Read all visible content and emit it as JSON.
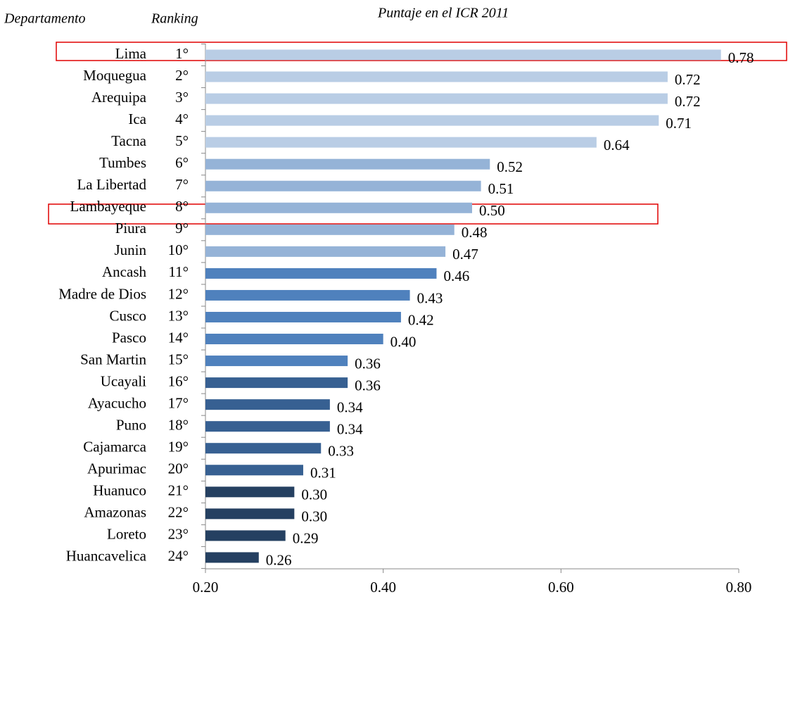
{
  "chart_data": {
    "type": "hbar",
    "title": "Puntaje en el ICR 2011",
    "category_header": "Departamento",
    "rank_header": "Ranking",
    "categories": [
      "Lima",
      "Moquegua",
      "Arequipa",
      "Ica",
      "Tacna",
      "Tumbes",
      "La Libertad",
      "Lambayeque",
      "Piura",
      "Junin",
      "Ancash",
      "Madre de Dios",
      "Cusco",
      "Pasco",
      "San Martin",
      "Ucayali",
      "Ayacucho",
      "Puno",
      "Cajamarca",
      "Apurimac",
      "Huanuco",
      "Amazonas",
      "Loreto",
      "Huancavelica"
    ],
    "ranks": [
      "1°",
      "2°",
      "3°",
      "4°",
      "5°",
      "6°",
      "7°",
      "8°",
      "9°",
      "10°",
      "11°",
      "12°",
      "13°",
      "14°",
      "15°",
      "16°",
      "17°",
      "18°",
      "19°",
      "20°",
      "21°",
      "22°",
      "23°",
      "24°"
    ],
    "values": [
      0.78,
      0.72,
      0.72,
      0.71,
      0.64,
      0.52,
      0.51,
      0.5,
      0.48,
      0.47,
      0.46,
      0.43,
      0.42,
      0.4,
      0.36,
      0.36,
      0.34,
      0.34,
      0.33,
      0.31,
      0.3,
      0.3,
      0.29,
      0.26
    ],
    "value_labels": [
      "0.78",
      "0.72",
      "0.72",
      "0.71",
      "0.64",
      "0.52",
      "0.51",
      "0.50",
      "0.48",
      "0.47",
      "0.46",
      "0.43",
      "0.42",
      "0.40",
      "0.36",
      "0.36",
      "0.34",
      "0.34",
      "0.33",
      "0.31",
      "0.30",
      "0.30",
      "0.29",
      "0.26"
    ],
    "colors": [
      "#b9cde5",
      "#b9cde5",
      "#b9cde5",
      "#b9cde5",
      "#b9cde5",
      "#95b3d7",
      "#95b3d7",
      "#95b3d7",
      "#95b3d7",
      "#95b3d7",
      "#4f81bd",
      "#4f81bd",
      "#4f81bd",
      "#4f81bd",
      "#4f81bd",
      "#376092",
      "#376092",
      "#376092",
      "#376092",
      "#376092",
      "#254061",
      "#254061",
      "#254061",
      "#254061"
    ],
    "xlim": [
      0.2,
      0.8
    ],
    "xticks": [
      {
        "value": 0.2,
        "label": "0.20"
      },
      {
        "value": 0.4,
        "label": "0.40"
      },
      {
        "value": 0.6,
        "label": "0.60"
      },
      {
        "value": 0.8,
        "label": "0.80"
      }
    ]
  }
}
